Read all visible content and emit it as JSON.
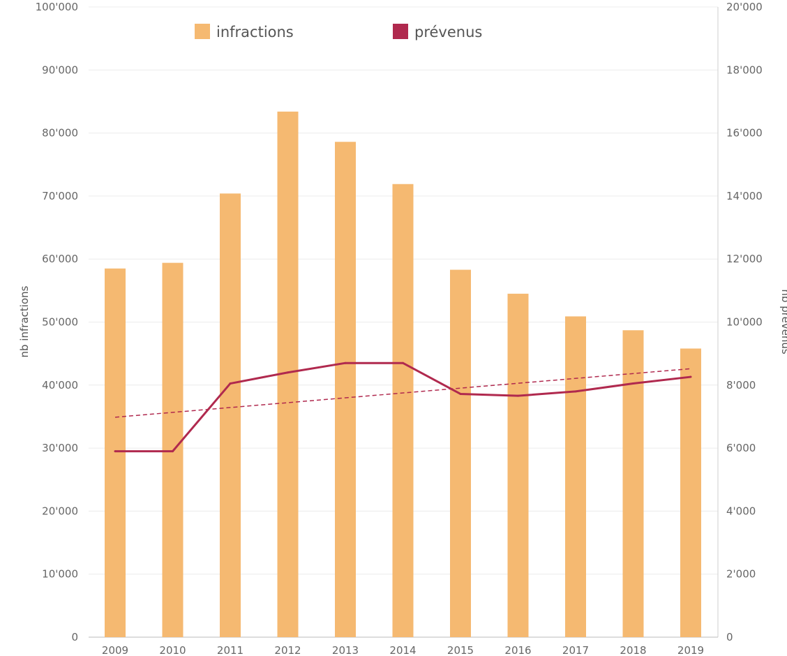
{
  "chart_data": {
    "type": "bar",
    "categories": [
      "2009",
      "2010",
      "2011",
      "2012",
      "2013",
      "2014",
      "2015",
      "2016",
      "2017",
      "2018",
      "2019"
    ],
    "series": [
      {
        "name": "infractions",
        "type": "bar",
        "axis": "left",
        "color": "#f5b971",
        "values": [
          58500,
          59400,
          70400,
          83400,
          78600,
          71900,
          58300,
          54500,
          50900,
          48700,
          45800
        ]
      },
      {
        "name": "prévenus",
        "type": "line",
        "axis": "right",
        "color": "#b0294e",
        "values": [
          5900,
          5900,
          8050,
          8400,
          8700,
          8700,
          7720,
          7660,
          7800,
          8050,
          8260
        ]
      }
    ],
    "trendline": {
      "series": "prévenus",
      "style": "dashed",
      "color": "#b0294e",
      "start": 6980,
      "end": 8520
    },
    "ylabel": "nb infractions",
    "y2label": "nb prévenus",
    "xlabel": "",
    "ylim": [
      0,
      100000
    ],
    "y2lim": [
      0,
      20000
    ],
    "yticks": [
      "0",
      "10'000",
      "20'000",
      "30'000",
      "40'000",
      "50'000",
      "60'000",
      "70'000",
      "80'000",
      "90'000",
      "100'000"
    ],
    "y2ticks": [
      "0",
      "2'000",
      "4'000",
      "6'000",
      "8'000",
      "10'000",
      "12'000",
      "14'000",
      "16'000",
      "18'000",
      "20'000"
    ],
    "grid": true,
    "legend_position": "top"
  }
}
